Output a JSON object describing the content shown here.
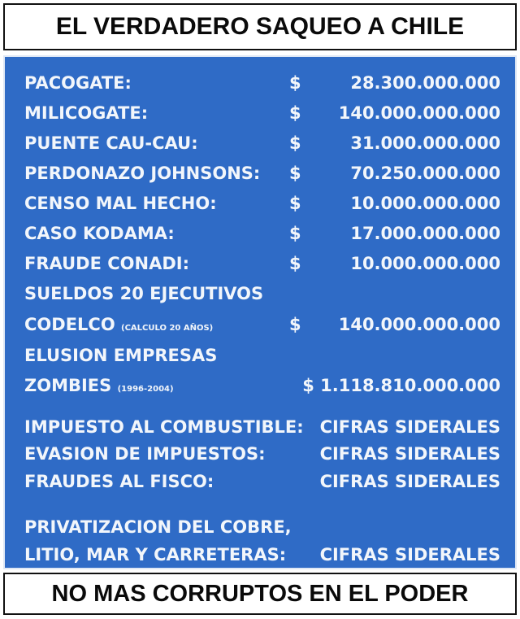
{
  "title": "EL VERDADERO SAQUEO A CHILE",
  "items": [
    {
      "label": "PACOGATE:",
      "currency": "$",
      "amount": "28.300.000.000"
    },
    {
      "label": "MILICOGATE:",
      "currency": "$",
      "amount": "140.000.000.000"
    },
    {
      "label": "PUENTE CAU-CAU:",
      "currency": "$",
      "amount": "31.000.000.000"
    },
    {
      "label": "PERDONAZO JOHNSONS:",
      "currency": "$",
      "amount": "70.250.000.000"
    },
    {
      "label": "CENSO MAL HECHO:",
      "currency": "$",
      "amount": "10.000.000.000"
    },
    {
      "label": "CASO KODAMA:",
      "currency": "$",
      "amount": "17.000.000.000"
    },
    {
      "label": "FRAUDE CONADI:",
      "currency": "$",
      "amount": "10.000.000.000"
    }
  ],
  "codelco": {
    "line1": "SUELDOS 20 EJECUTIVOS",
    "line2": "CODELCO",
    "note": "(CALCULO 20 AÑOS)",
    "currency": "$",
    "amount": "140.000.000.000"
  },
  "zombies": {
    "line1": "ELUSION EMPRESAS",
    "line2": "ZOMBIES",
    "note": "(1996-2004)",
    "amount": "$ 1.118.810.000.000"
  },
  "siderales": [
    {
      "label": "IMPUESTO AL COMBUSTIBLE:",
      "value": "CIFRAS SIDERALES"
    },
    {
      "label": "EVASION DE IMPUESTOS:",
      "value": "CIFRAS SIDERALES"
    },
    {
      "label": "FRAUDES AL FISCO:",
      "value": "CIFRAS SIDERALES"
    }
  ],
  "privatizacion": {
    "line1": "PRIVATIZACION DEL COBRE,",
    "line2": "LITIO, MAR Y CARRETERAS:",
    "value": "CIFRAS SIDERALES"
  },
  "footer": "NO MAS CORRUPTOS EN EL PODER",
  "colors": {
    "panel": "#2f6bc6",
    "text": "#f2f6fb"
  }
}
